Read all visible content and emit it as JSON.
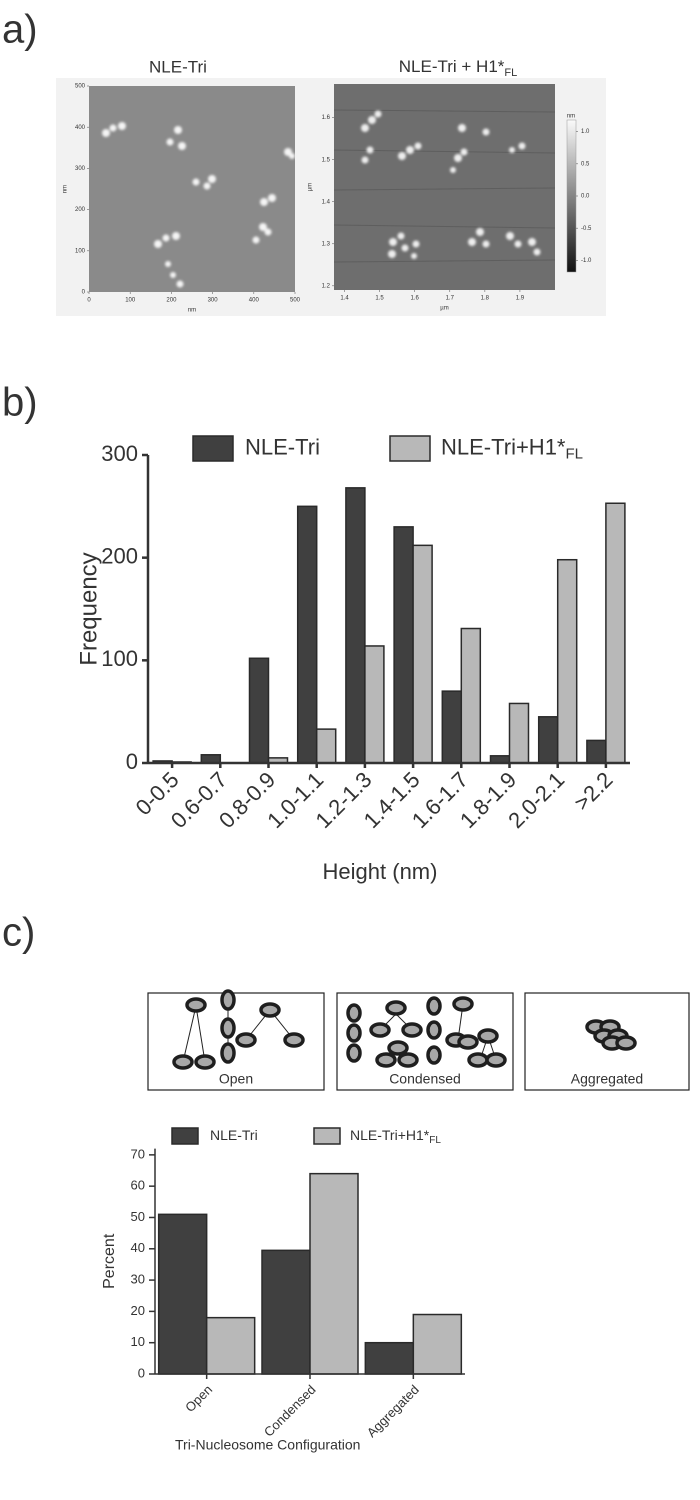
{
  "panel_labels": [
    "a)",
    "b)",
    "c)"
  ],
  "images": [
    {
      "title": "NLE-Tri",
      "xlabel": "nm",
      "ylabel": "nm",
      "xlim": [
        0,
        500
      ],
      "xticks": [
        0,
        100,
        200,
        300,
        400,
        500
      ],
      "ylim": [
        0,
        500
      ],
      "yticks": [
        0,
        100,
        200,
        300,
        400,
        500
      ]
    },
    {
      "title": "NLE-Tri + H1*",
      "title_sub": "FL",
      "xlabel": "µm",
      "ylabel": "µm",
      "xlim": [
        1.37,
        2.0
      ],
      "xticks": [
        1.4,
        1.5,
        1.6,
        1.7,
        1.8,
        1.9
      ],
      "ylim": [
        1.19,
        1.68
      ],
      "yticks": [
        1.2,
        1.3,
        1.4,
        1.5,
        1.6
      ],
      "colorbar": {
        "label": "nm",
        "clim": [
          -1.18,
          1.18
        ],
        "ticks": [
          {
            "value": 1,
            "label": "1.0"
          },
          {
            "value": 0.5,
            "label": "0.5"
          },
          {
            "value": 0,
            "label": "0.0"
          },
          {
            "value": -0.5,
            "label": "-0.5"
          },
          {
            "value": -1,
            "label": "-1.0"
          }
        ]
      }
    }
  ],
  "chart_data": [
    {
      "type": "bar",
      "xlabel": "Height (nm)",
      "ylabel": "Frequency",
      "categories": [
        "0-0.5",
        "0.6-0.7",
        "0.8-0.9",
        "1.0-1.1",
        "1.2-1.3",
        "1.4-1.5",
        "1.6-1.7",
        "1.8-1.9",
        "2.0-2.1",
        ">2.2"
      ],
      "series": [
        {
          "name": "NLE-Tri",
          "color": "#404040",
          "values": [
            2,
            8,
            102,
            250,
            268,
            230,
            70,
            7,
            45,
            22
          ]
        },
        {
          "name": "NLE-Tri+H1*",
          "name_sub": "FL",
          "color": "#b8b8b8",
          "values": [
            1,
            0,
            5,
            33,
            114,
            212,
            131,
            58,
            198,
            253
          ]
        }
      ],
      "ylim": [
        0,
        300
      ],
      "yticks": [
        0,
        100,
        200,
        300
      ],
      "legend": "top"
    },
    {
      "type": "bar",
      "xlabel": "Tri-Nucleosome Configuration",
      "ylabel": "Percent",
      "categories": [
        "Open",
        "Condensed",
        "Aggregated"
      ],
      "series": [
        {
          "name": "NLE-Tri",
          "color": "#404040",
          "values": [
            51,
            39.5,
            10
          ]
        },
        {
          "name": "NLE-Tri+H1*",
          "name_sub": "FL",
          "color": "#b8b8b8",
          "values": [
            18,
            64,
            19
          ]
        }
      ],
      "ylim": [
        0,
        72
      ],
      "yticks": [
        0,
        10,
        20,
        30,
        40,
        50,
        60,
        70
      ],
      "legend": "top"
    }
  ]
}
